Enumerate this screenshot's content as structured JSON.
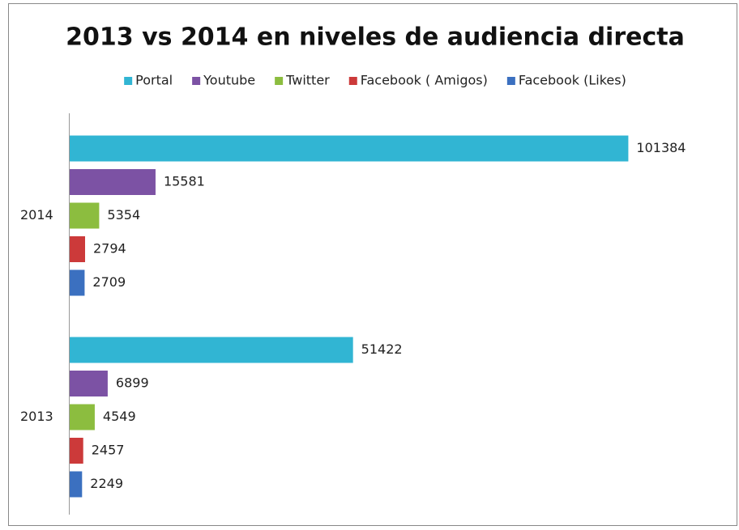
{
  "chart_data": {
    "type": "bar",
    "orientation": "horizontal",
    "title": "2013 vs 2014 en niveles de audiencia directa",
    "categories": [
      "2014",
      "2013"
    ],
    "series": [
      {
        "name": "Portal",
        "color": "#31b5d3",
        "values": [
          101384,
          51422
        ]
      },
      {
        "name": "Youtube",
        "color": "#7c52a4",
        "values": [
          15581,
          6899
        ]
      },
      {
        "name": "Twitter",
        "color": "#8cbd3f",
        "values": [
          5354,
          4549
        ]
      },
      {
        "name": "Facebook ( Amigos)",
        "color": "#cc3a3a",
        "values": [
          2794,
          2457
        ]
      },
      {
        "name": "Facebook (Likes)",
        "color": "#3b70c0",
        "values": [
          2709,
          2249
        ]
      }
    ],
    "xlim": [
      0,
      120000
    ],
    "legend": "top"
  }
}
